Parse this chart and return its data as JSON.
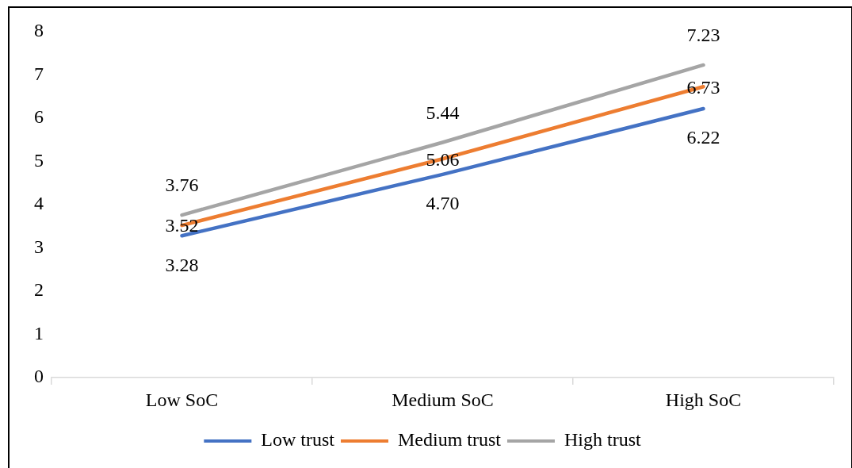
{
  "chart_data": {
    "type": "line",
    "categories": [
      "Low SoC",
      "Medium SoC",
      "High SoC"
    ],
    "series": [
      {
        "name": "Low trust",
        "color": "#4472c4",
        "values": [
          3.28,
          4.7,
          6.22
        ],
        "value_labels": [
          "3.28",
          "4.70",
          "6.22"
        ]
      },
      {
        "name": "Medium trust",
        "color": "#ed7d31",
        "values": [
          3.52,
          5.06,
          6.73
        ],
        "value_labels": [
          "3.52",
          "5.06",
          "6.73"
        ]
      },
      {
        "name": "High trust",
        "color": "#a5a5a5",
        "values": [
          3.76,
          5.44,
          7.23
        ],
        "value_labels": [
          "3.76",
          "5.44",
          "7.23"
        ]
      }
    ],
    "ylim": [
      0,
      8
    ],
    "yticks": [
      0,
      1,
      2,
      3,
      4,
      5,
      6,
      7,
      8
    ],
    "grid": false,
    "legend": "bottom",
    "marker": "none",
    "line_style": "solid"
  }
}
